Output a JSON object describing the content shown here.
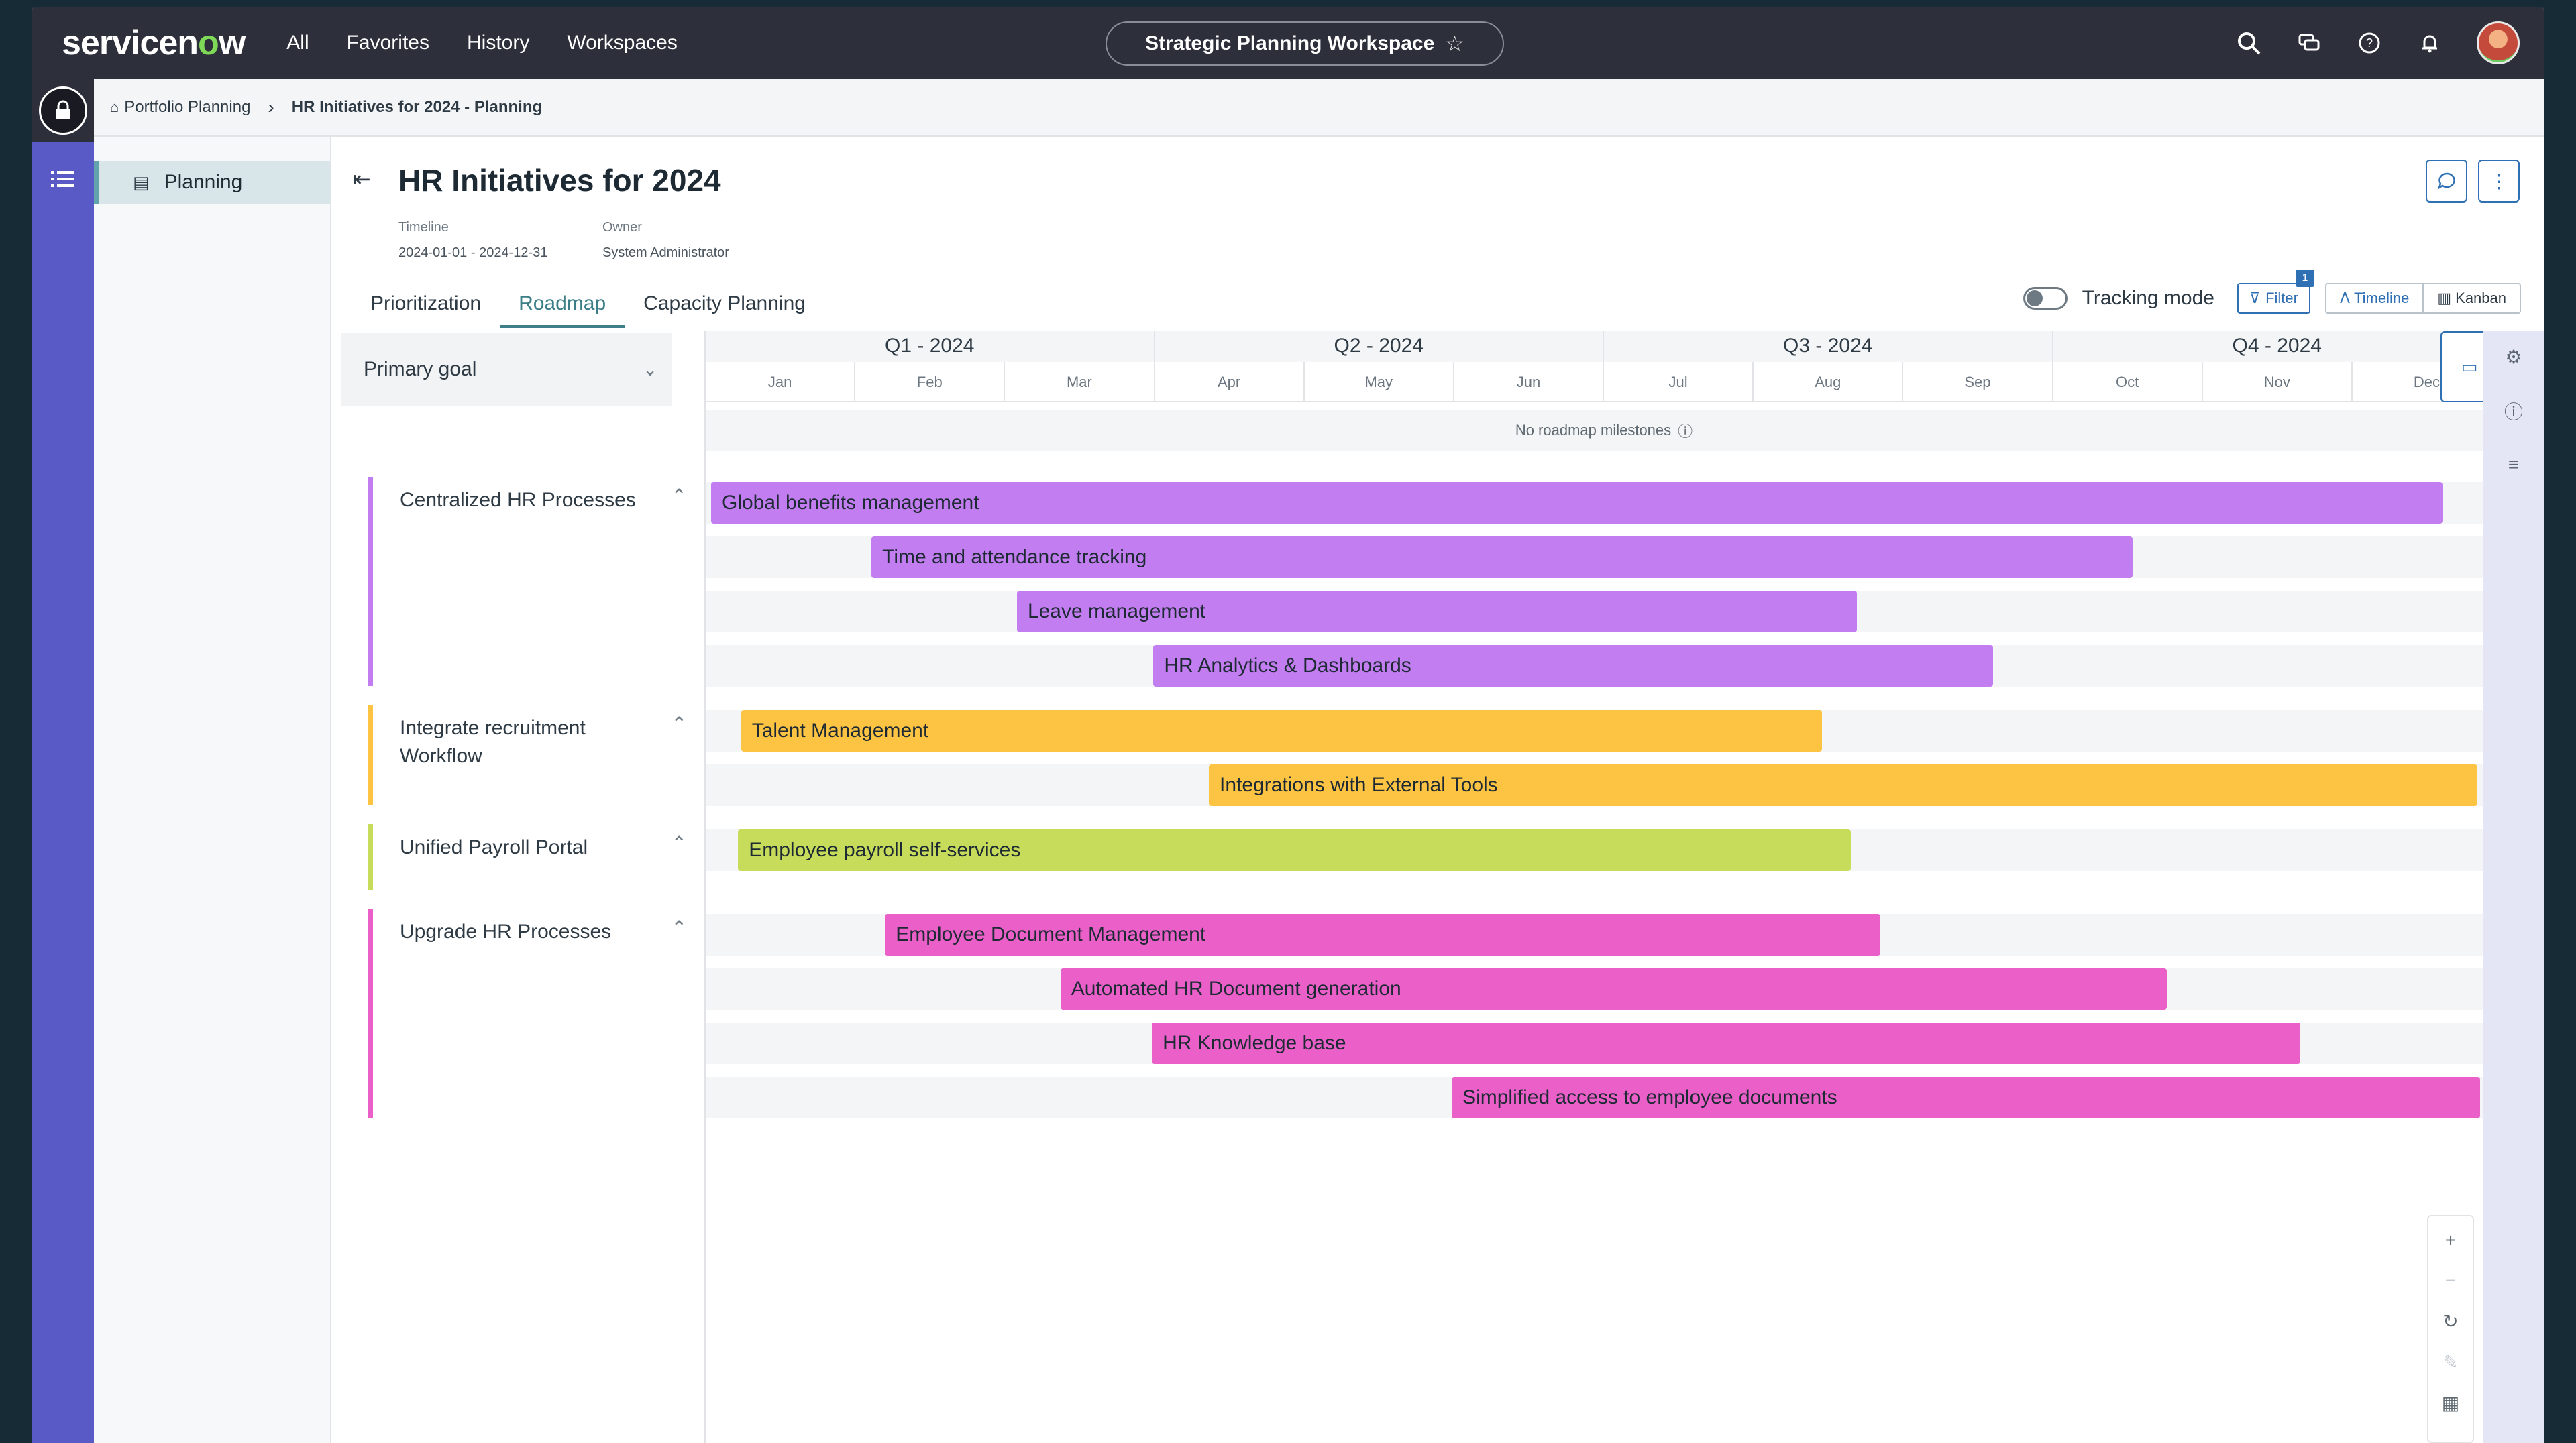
{
  "topnav": {
    "logo_text": "servicenow",
    "links": [
      "All",
      "Favorites",
      "History",
      "Workspaces"
    ],
    "workspace_label": "Strategic Planning Workspace",
    "star_glyph": "☆",
    "icons": [
      "search-icon",
      "chat-icon",
      "help-icon",
      "bell-icon",
      "avatar"
    ]
  },
  "breadcrumb": {
    "items": [
      "Portfolio Planning",
      "HR Initiatives for 2024 - Planning"
    ]
  },
  "sidenav": {
    "items": [
      {
        "label": "Planning",
        "icon": "planning-icon"
      }
    ]
  },
  "header": {
    "title": "HR Initiatives for 2024",
    "timeline_label": "Timeline",
    "timeline_value": "2024-01-01 - 2024-12-31",
    "owner_label": "Owner",
    "owner_value": "System Administrator"
  },
  "tabs": [
    "Prioritization",
    "Roadmap",
    "Capacity Planning"
  ],
  "active_tab": "Roadmap",
  "toolbar": {
    "tracking_label": "Tracking mode",
    "filter_label": "Filter",
    "filter_count": "1",
    "timeline_label": "Timeline",
    "kanban_label": "Kanban"
  },
  "goal_column": {
    "header": "Primary goal"
  },
  "timeline": {
    "quarters": [
      "Q1 - 2024",
      "Q2 - 2024",
      "Q3 - 2024",
      "Q4 - 2024"
    ],
    "months": [
      "Jan",
      "Feb",
      "Mar",
      "Apr",
      "May",
      "Jun",
      "Jul",
      "Aug",
      "Sep",
      "Oct",
      "Nov",
      "Dec"
    ],
    "milestones_text": "No roadmap milestones"
  },
  "groups": [
    {
      "name": "Centralized HR Processes",
      "color": "#c27ef0",
      "items": [
        {
          "label": "Global benefits management",
          "start_month": 0.0,
          "end_month": 11.55
        },
        {
          "label": "Time and attendance tracking",
          "start_month": 1.07,
          "end_month": 9.48
        },
        {
          "label": "Leave management",
          "start_month": 2.04,
          "end_month": 7.64
        },
        {
          "label": "HR Analytics & Dashboards",
          "start_month": 2.95,
          "end_month": 8.55
        }
      ]
    },
    {
      "name": "Integrate recruitment Workflow",
      "color": "#fdc443",
      "items": [
        {
          "label": "Talent Management",
          "start_month": 0.2,
          "end_month": 7.41
        },
        {
          "label": "Integrations with External Tools",
          "start_month": 3.32,
          "end_month": 11.78
        }
      ]
    },
    {
      "name": "Unified Payroll Portal",
      "color": "#c8dc5c",
      "items": [
        {
          "label": "Employee payroll self-services",
          "start_month": 0.18,
          "end_month": 7.6
        }
      ]
    },
    {
      "name": "Upgrade HR Processes",
      "color": "#ea5fc8",
      "items": [
        {
          "label": "Employee Document Management",
          "start_month": 1.16,
          "end_month": 7.8
        },
        {
          "label": "Automated HR Document generation",
          "start_month": 2.33,
          "end_month": 9.71
        },
        {
          "label": "HR Knowledge base",
          "start_month": 2.94,
          "end_month": 10.6
        },
        {
          "label": "Simplified access to employee documents",
          "start_month": 4.94,
          "end_month": 11.8
        }
      ]
    }
  ],
  "colors": {
    "nav": "#2d2f3a",
    "rail": "#5a5ac7",
    "accent": "#2f6fb3",
    "tab_active": "#3c7f88"
  }
}
